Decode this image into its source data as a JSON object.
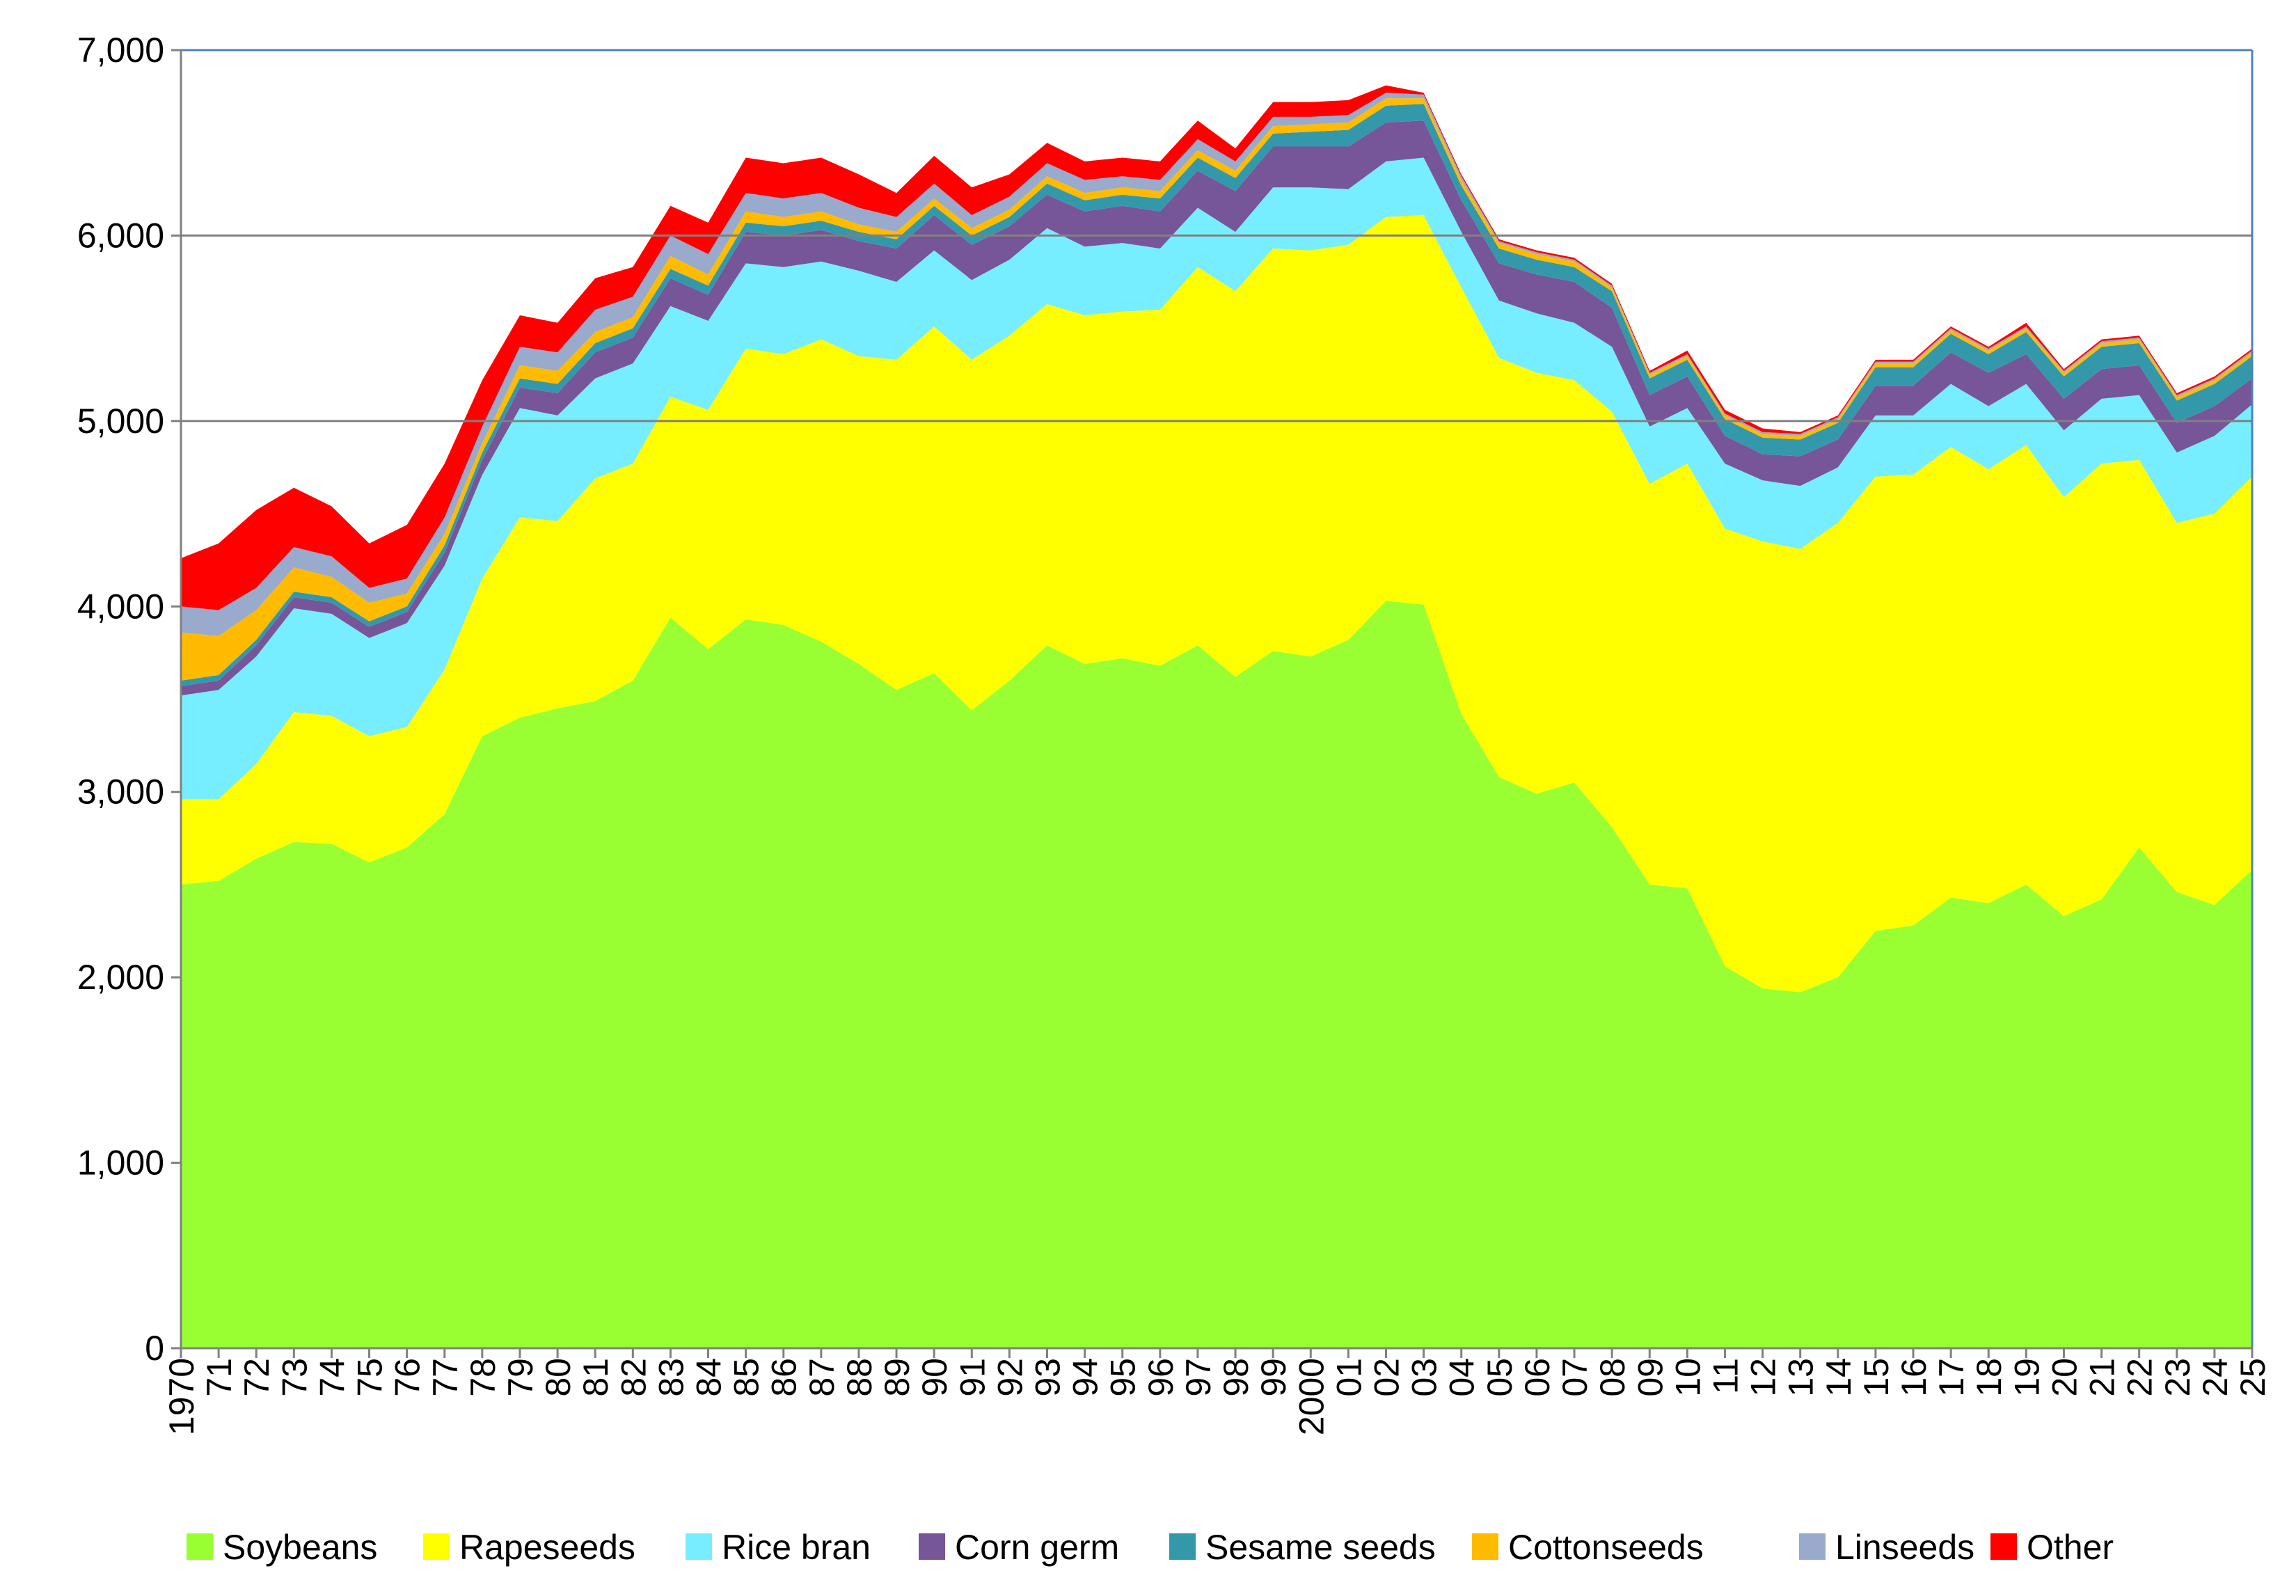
{
  "chart_data": {
    "type": "area",
    "stacked": true,
    "x": [
      1970,
      1971,
      1972,
      1973,
      1974,
      1975,
      1976,
      1977,
      1978,
      1979,
      1980,
      1981,
      1982,
      1983,
      1984,
      1985,
      1986,
      1987,
      1988,
      1989,
      1990,
      1991,
      1992,
      1993,
      1994,
      1995,
      1996,
      1997,
      1998,
      1999,
      2000,
      2001,
      2002,
      2003,
      2004,
      2005,
      2006,
      2007,
      2008,
      2009,
      2010,
      2011,
      2012,
      2013,
      2014,
      2015,
      2016,
      2017,
      2018,
      2019,
      2020,
      2021,
      2022,
      2023,
      2024,
      2025
    ],
    "x_tick_labels": [
      "1970",
      "71",
      "72",
      "73",
      "74",
      "75",
      "76",
      "77",
      "78",
      "79",
      "80",
      "81",
      "82",
      "83",
      "84",
      "85",
      "86",
      "87",
      "88",
      "89",
      "90",
      "91",
      "92",
      "93",
      "94",
      "95",
      "96",
      "97",
      "98",
      "99",
      "2000",
      "01",
      "02",
      "03",
      "04",
      "05",
      "06",
      "07",
      "08",
      "09",
      "10",
      "11",
      "12",
      "13",
      "14",
      "15",
      "16",
      "17",
      "18",
      "19",
      "20",
      "21",
      "22",
      "23",
      "24",
      "25"
    ],
    "y_ticks": [
      0,
      1000,
      2000,
      3000,
      4000,
      5000,
      6000,
      7000
    ],
    "y_tick_labels": [
      "0",
      "1,000",
      "2,000",
      "3,000",
      "4,000",
      "5,000",
      "6,000",
      "7,000"
    ],
    "ylim": [
      0,
      7000
    ],
    "grid": "horizontal at 6000 and 5000",
    "legend_position": "bottom",
    "title": "",
    "xlabel": "",
    "ylabel": "",
    "series": [
      {
        "name": "Soybeans",
        "color": "#99ff33",
        "values": [
          2500,
          2520,
          2640,
          2730,
          2720,
          2620,
          2700,
          2880,
          3300,
          3400,
          3450,
          3490,
          3600,
          3940,
          3770,
          3930,
          3900,
          3810,
          3690,
          3550,
          3640,
          3440,
          3600,
          3790,
          3690,
          3720,
          3680,
          3790,
          3620,
          3760,
          3730,
          3820,
          4030,
          4010,
          3420,
          3080,
          2990,
          3050,
          2810,
          2500,
          2480,
          2060,
          1940,
          1920,
          2000,
          2250,
          2280,
          2430,
          2400,
          2500,
          2330,
          2420,
          2700,
          2460,
          2390,
          2580
        ]
      },
      {
        "name": "Rapeseeds",
        "color": "#ffff00",
        "values": [
          460,
          440,
          510,
          700,
          690,
          680,
          650,
          780,
          850,
          1080,
          1010,
          1200,
          1170,
          1190,
          1290,
          1460,
          1460,
          1630,
          1660,
          1780,
          1870,
          1890,
          1860,
          1840,
          1880,
          1870,
          1920,
          2040,
          2080,
          2170,
          2190,
          2130,
          2070,
          2100,
          2300,
          2260,
          2270,
          2170,
          2240,
          2160,
          2290,
          2360,
          2410,
          2390,
          2450,
          2450,
          2430,
          2430,
          2340,
          2370,
          2260,
          2350,
          2090,
          1990,
          2110,
          2120
        ]
      },
      {
        "name": "Rice bran",
        "color": "#77eeff",
        "values": [
          560,
          590,
          580,
          560,
          550,
          530,
          560,
          560,
          560,
          590,
          570,
          540,
          540,
          490,
          480,
          460,
          470,
          420,
          460,
          420,
          410,
          430,
          410,
          410,
          370,
          370,
          330,
          320,
          320,
          330,
          340,
          300,
          300,
          310,
          300,
          310,
          320,
          310,
          350,
          310,
          300,
          350,
          330,
          340,
          300,
          330,
          320,
          340,
          340,
          330,
          360,
          350,
          350,
          380,
          420,
          390
        ]
      },
      {
        "name": "Corn germ",
        "color": "#775599",
        "values": [
          50,
          50,
          60,
          60,
          60,
          60,
          60,
          70,
          80,
          110,
          120,
          140,
          140,
          150,
          140,
          170,
          170,
          170,
          160,
          180,
          190,
          190,
          180,
          180,
          190,
          200,
          200,
          200,
          220,
          220,
          220,
          230,
          210,
          200,
          170,
          200,
          210,
          220,
          210,
          170,
          170,
          150,
          140,
          160,
          150,
          160,
          160,
          170,
          180,
          160,
          170,
          160,
          160,
          160,
          160,
          140
        ]
      },
      {
        "name": "Sesame seeds",
        "color": "#3399aa",
        "values": [
          30,
          30,
          30,
          30,
          30,
          30,
          30,
          40,
          40,
          50,
          50,
          50,
          50,
          50,
          50,
          50,
          50,
          50,
          50,
          50,
          50,
          50,
          50,
          60,
          60,
          60,
          70,
          70,
          70,
          70,
          80,
          90,
          90,
          90,
          80,
          80,
          80,
          80,
          90,
          90,
          90,
          90,
          90,
          90,
          90,
          100,
          100,
          100,
          100,
          120,
          120,
          120,
          120,
          120,
          120,
          120
        ]
      },
      {
        "name": "Cottonseeds",
        "color": "#ffbb00",
        "values": [
          260,
          210,
          160,
          130,
          110,
          100,
          70,
          60,
          50,
          70,
          70,
          60,
          60,
          70,
          60,
          60,
          50,
          50,
          40,
          40,
          40,
          40,
          40,
          40,
          40,
          40,
          40,
          40,
          40,
          40,
          40,
          40,
          40,
          30,
          30,
          30,
          30,
          30,
          20,
          20,
          20,
          20,
          20,
          20,
          20,
          20,
          20,
          20,
          20,
          20,
          20,
          20,
          20,
          20,
          20,
          20
        ]
      },
      {
        "name": "Linseeds",
        "color": "#99aacc",
        "values": [
          140,
          140,
          120,
          110,
          110,
          80,
          80,
          90,
          90,
          100,
          100,
          120,
          110,
          110,
          110,
          100,
          100,
          100,
          90,
          80,
          80,
          70,
          70,
          70,
          70,
          60,
          60,
          60,
          50,
          50,
          40,
          40,
          30,
          20,
          20,
          10,
          10,
          10,
          10,
          10,
          10,
          10,
          10,
          10,
          10,
          10,
          10,
          10,
          10,
          10,
          10,
          10,
          10,
          10,
          10,
          10
        ]
      },
      {
        "name": "Other",
        "color": "#ff0000",
        "values": [
          260,
          360,
          420,
          320,
          270,
          240,
          290,
          290,
          250,
          170,
          160,
          170,
          160,
          160,
          170,
          190,
          190,
          190,
          180,
          130,
          150,
          150,
          120,
          110,
          100,
          100,
          100,
          100,
          70,
          80,
          80,
          80,
          40,
          10,
          10,
          10,
          10,
          10,
          10,
          10,
          20,
          20,
          20,
          10,
          10,
          10,
          10,
          10,
          10,
          20,
          10,
          10,
          10,
          10,
          10,
          10
        ]
      }
    ]
  }
}
